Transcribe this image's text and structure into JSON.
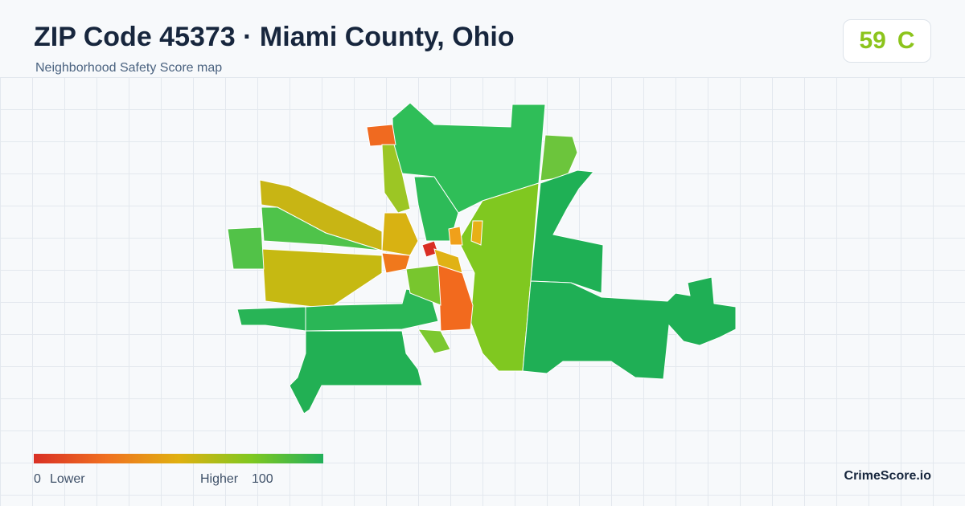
{
  "header": {
    "title": "ZIP Code 45373 · Miami County, Ohio",
    "subtitle": "Neighborhood Safety Score map"
  },
  "score": {
    "value": 59,
    "grade": "C"
  },
  "legend": {
    "min": 0,
    "min_label": "Lower",
    "max_label": "Higher",
    "max": 100
  },
  "brand": "CrimeScore.io"
}
